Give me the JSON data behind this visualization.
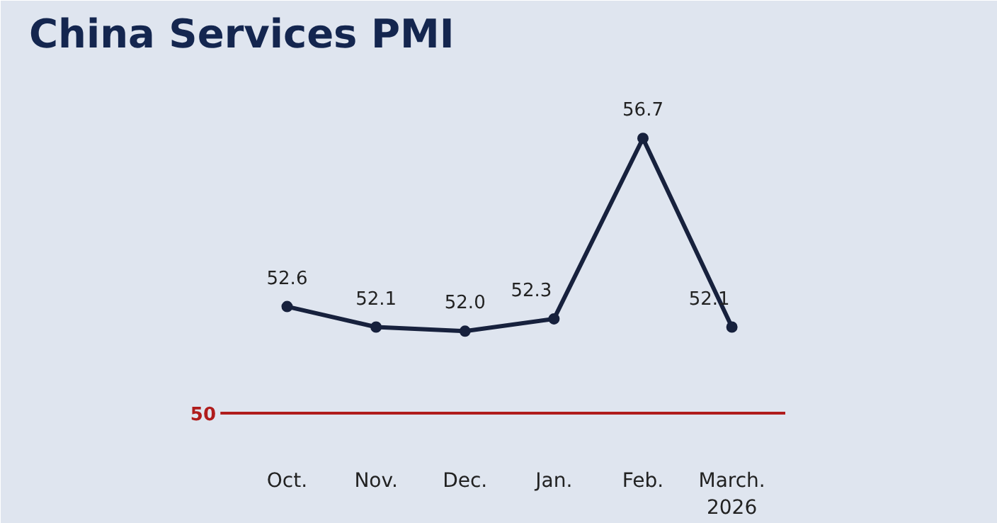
{
  "chart_data": {
    "type": "line",
    "title": "China Services PMI",
    "categories": [
      "Oct.",
      "Nov.",
      "Dec.",
      "Jan.",
      "Feb.",
      "March.\n2026"
    ],
    "series": [
      {
        "color": "#17213d",
        "values": [
          52.6,
          52.1,
          52.0,
          52.3,
          56.7,
          52.1
        ],
        "value_labels": [
          "52.6",
          "52.1",
          "52.0",
          "52.3",
          "56.7",
          "52.1"
        ]
      }
    ],
    "ylim": [
      49,
      58.5
    ],
    "tick_labels": "x",
    "grid": false,
    "marker": "circle",
    "line_style": "solid",
    "ref_lines": [
      {
        "axis": "y",
        "value": 50,
        "label": "50",
        "color": "#b01c1c"
      }
    ]
  }
}
